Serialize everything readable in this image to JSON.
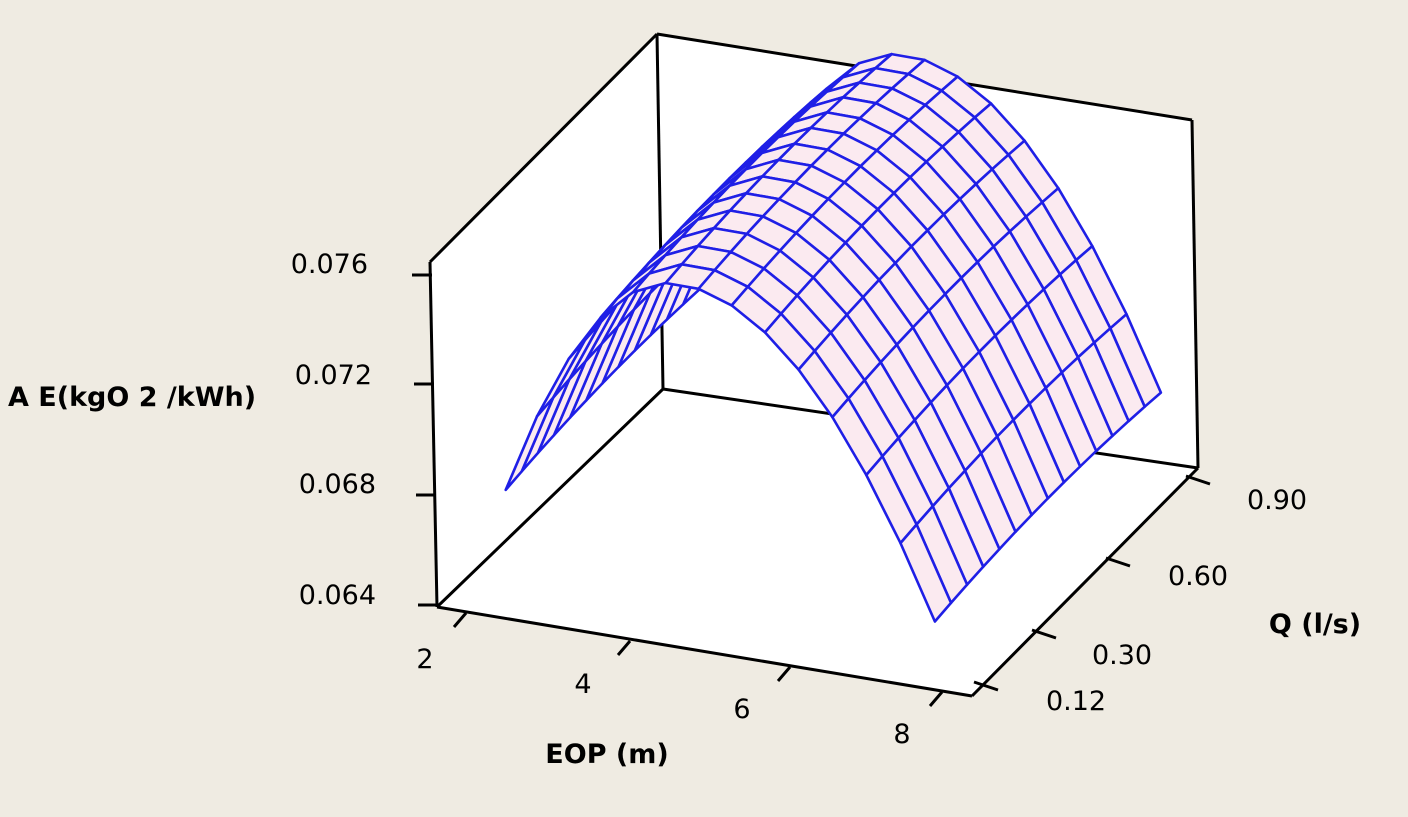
{
  "chart_data": {
    "type": "surface",
    "zlabel": "A E(kgO 2 /kWh)",
    "xlabel": "EOP (m)",
    "ylabel": "Q (l/s)",
    "x_ticks": [
      "2",
      "4",
      "6",
      "8"
    ],
    "y_ticks": [
      "0.12",
      "0.30",
      "0.60",
      "0.90"
    ],
    "z_ticks": [
      "0.064",
      "0.068",
      "0.072",
      "0.076"
    ],
    "xlim": [
      2,
      8
    ],
    "ylim": [
      0.12,
      0.9
    ],
    "zlim": [
      0.064,
      0.076
    ],
    "surface": {
      "x_range": [
        2.8,
        7.6
      ],
      "y_range": [
        0.12,
        0.9
      ],
      "x_steps": 13,
      "y_steps": 14,
      "peak_x": 4.8,
      "peak_y": 0.52,
      "z_peak": 0.077,
      "z_at_x_min": 0.0688,
      "z_at_x_max": 0.0667,
      "y_curvature": 0.0012
    },
    "colors": {
      "mesh_line": "#1f1fe6",
      "mesh_fill": "#fbeaf0",
      "background": "#efebe2",
      "plot_area": "#ffffff"
    },
    "grid": false,
    "legend": "none"
  }
}
